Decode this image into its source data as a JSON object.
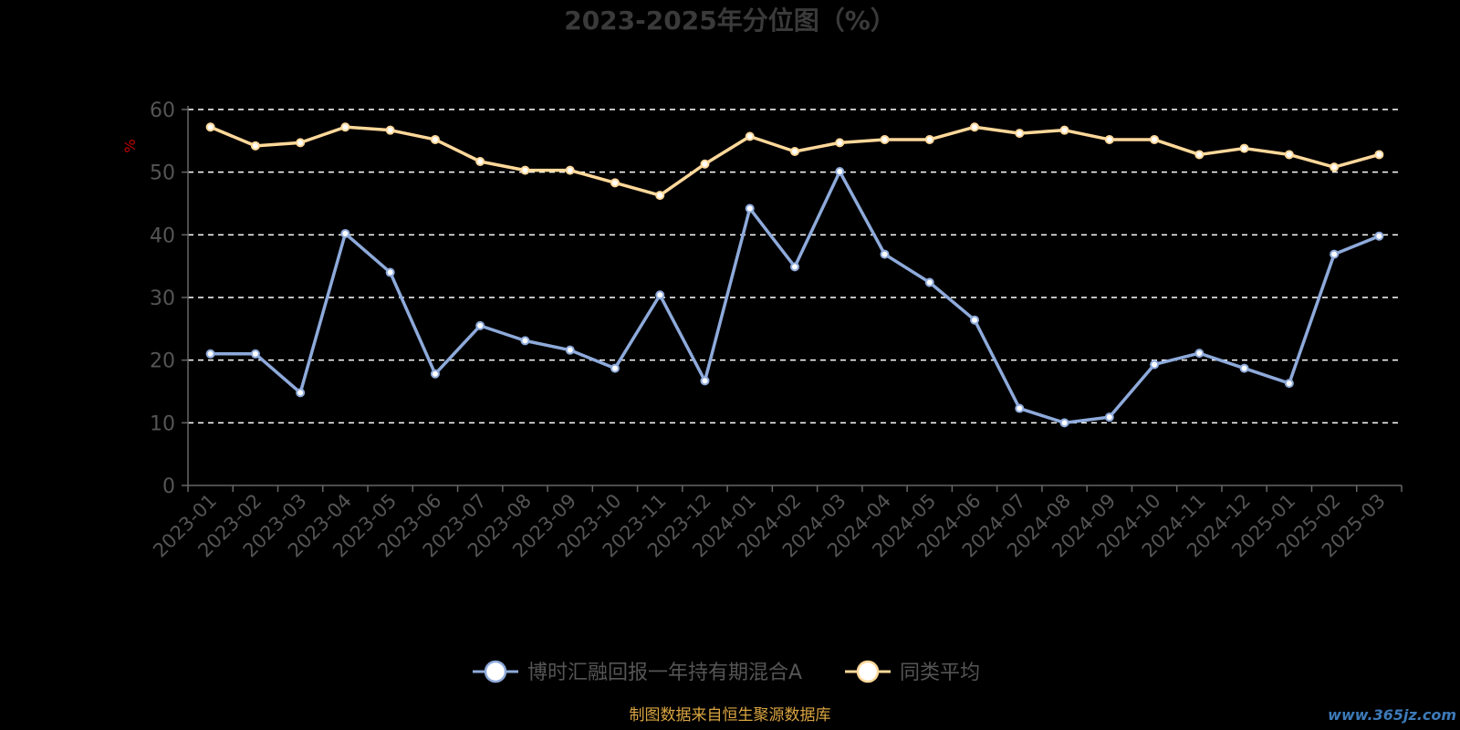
{
  "chart_data": {
    "type": "line",
    "title": "2023-2025年分位图（%）",
    "ylabel": "%",
    "ylim": [
      0,
      60
    ],
    "yticks": [
      0,
      10,
      20,
      30,
      40,
      50,
      60
    ],
    "grid": true,
    "legend_position": "bottom",
    "categories": [
      "2023-01",
      "2023-02",
      "2023-03",
      "2023-04",
      "2023-05",
      "2023-06",
      "2023-07",
      "2023-08",
      "2023-09",
      "2023-10",
      "2023-11",
      "2023-12",
      "2024-01",
      "2024-02",
      "2024-03",
      "2024-04",
      "2024-05",
      "2024-06",
      "2024-07",
      "2024-08",
      "2024-09",
      "2024-10",
      "2024-11",
      "2024-12",
      "2025-01",
      "2025-02",
      "2025-03"
    ],
    "series": [
      {
        "name": "博时汇融回报一年持有期混合A",
        "color": "#8eaadb",
        "values": [
          21,
          21,
          14.8,
          40.2,
          34,
          17.8,
          25.5,
          23.1,
          21.6,
          18.7,
          30.4,
          16.7,
          44.2,
          34.9,
          50.1,
          36.9,
          32.4,
          26.4,
          12.3,
          10,
          10.9,
          19.3,
          21.1,
          18.7,
          16.3,
          36.9,
          39.8
        ]
      },
      {
        "name": "同类平均",
        "color": "#ffd89a",
        "values": [
          57.2,
          54.2,
          54.7,
          57.2,
          56.7,
          55.2,
          51.7,
          50.3,
          50.3,
          48.3,
          46.3,
          51.3,
          55.7,
          53.3,
          54.7,
          55.2,
          55.2,
          57.2,
          56.2,
          56.7,
          55.2,
          55.2,
          52.8,
          53.8,
          52.8,
          50.8,
          52.8
        ]
      }
    ]
  },
  "footer": {
    "source": "制图数据来自恒生聚源数据库",
    "watermark": "www.365jz.com"
  }
}
